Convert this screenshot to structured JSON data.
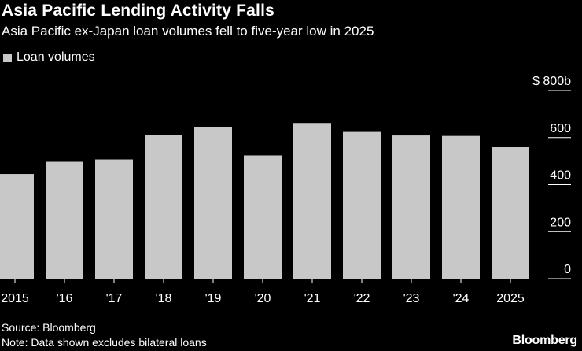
{
  "header": {
    "title": "Asia Pacific Lending Activity Falls",
    "subtitle": "Asia Pacific ex-Japan loan volumes fell to five-year low in 2025"
  },
  "legend": {
    "label": "Loan volumes",
    "color": "#c8c8c8"
  },
  "footer": {
    "source": "Source: Bloomberg",
    "note": "Note: Data shown excludes bilateral loans",
    "brand": "Bloomberg"
  },
  "colors": {
    "background": "#000000",
    "bar": "#c8c8c8",
    "text": "#ffffff",
    "grid": "#ffffff"
  },
  "chart_data": {
    "type": "bar",
    "title": "Asia Pacific Lending Activity Falls",
    "subtitle": "Asia Pacific ex-Japan loan volumes fell to five-year low in 2025",
    "categories": [
      "2015",
      "'16",
      "'17",
      "'18",
      "'19",
      "'20",
      "'21",
      "'22",
      "'23",
      "'24",
      "2025"
    ],
    "series": [
      {
        "name": "Loan volumes",
        "values": [
          445,
          497,
          507,
          611,
          646,
          524,
          662,
          624,
          609,
          607,
          559
        ]
      }
    ],
    "yticks": [
      0,
      200,
      400,
      600,
      800
    ],
    "ytick_labels": [
      "0",
      "200",
      "400",
      "600",
      "$ 800b"
    ],
    "ylim": [
      0,
      800
    ],
    "xlabel": "",
    "ylabel": "",
    "y_axis_position": "right",
    "grid": false
  }
}
